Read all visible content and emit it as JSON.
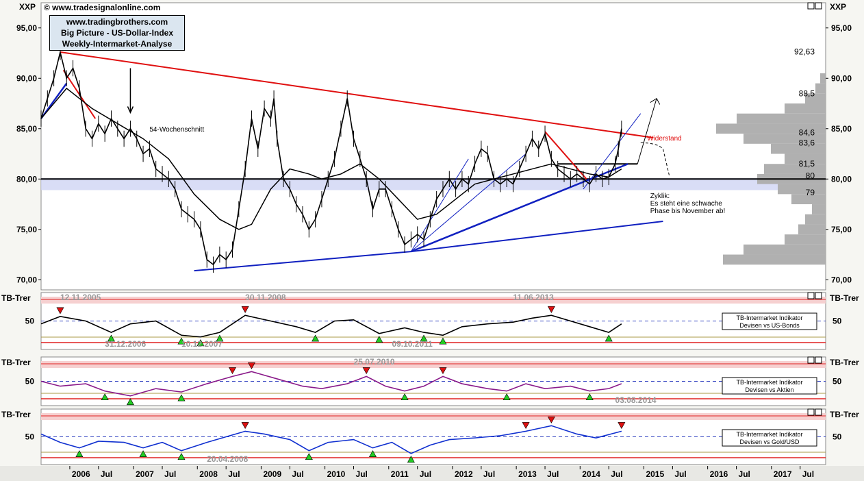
{
  "copyright": "© www.tradesignalonline.com",
  "symbol": "XXP",
  "header_box": [
    "www.tradingbrothers.com",
    "Big Picture - US-Dollar-Index",
    "Weekly-Intermarket-Analyse"
  ],
  "annotations": {
    "ma_label": "54-Wochenschnitt",
    "resistance_label": "Widerstand",
    "cycle_lines": [
      "Zyklik:",
      "Es steht eine schwache",
      "Phase bis November ab!"
    ],
    "levels": [
      "92,63",
      "88,5",
      "84,6",
      "83,6",
      "81,5",
      "80",
      "79"
    ]
  },
  "panel_labels": [
    "TB-Trer",
    "TB-Trer",
    "TB-Trer"
  ],
  "indicator_boxes": [
    [
      "TB-Intermarket Indikator",
      "Devisen vs US-Bonds"
    ],
    [
      "TB-Intermarket Indikator",
      "Devisen vs Aktien"
    ],
    [
      "TB-Intermarket Indikator",
      "Devisen vs Gold/USD"
    ]
  ],
  "indicator_dates": [
    [
      "12.11.2005",
      "30.11.2008",
      "11.06.2013",
      "31.12.2006",
      "10.12.2007",
      "09.10.2011"
    ],
    [
      "25.07.2010",
      "03.08.2014"
    ],
    [
      "20.04.2008"
    ]
  ],
  "x_axis": [
    "2006",
    "Jul",
    "2007",
    "Jul",
    "2008",
    "Jul",
    "2009",
    "Jul",
    "2010",
    "Jul",
    "2011",
    "Jul",
    "2012",
    "Jul",
    "2013",
    "Jul",
    "2014",
    "Jul",
    "2015",
    "Jul",
    "2016",
    "Jul",
    "2017",
    "Jul"
  ],
  "colors": {
    "price": "#000000",
    "resistance": "#e01010",
    "support": "#1020c0",
    "bonds": "#000000",
    "aktien": "#8a1a8a",
    "gold": "#1030d0",
    "up": "#22cc22",
    "down": "#dd1111"
  },
  "chart_data": [
    {
      "type": "line",
      "title": "Big Picture - US-Dollar-Index",
      "ylabel": "XXP",
      "ylim": [
        69.0,
        97.5
      ],
      "yticks": [
        "95,00",
        "90,00",
        "85,00",
        "80,00",
        "75,00",
        "70,00"
      ],
      "yticks_values": [
        95,
        90,
        85,
        80,
        75,
        70
      ],
      "x_range": [
        "2005-08",
        "2017-12"
      ],
      "series": [
        {
          "values": [
            [
              2005.6,
              86
            ],
            [
              2005.7,
              88
            ],
            [
              2005.8,
              90
            ],
            [
              2005.9,
              92.6
            ],
            [
              2006.0,
              90
            ],
            [
              2006.1,
              91
            ],
            [
              2006.2,
              89
            ],
            [
              2006.3,
              85
            ],
            [
              2006.4,
              84
            ],
            [
              2006.5,
              85.5
            ],
            [
              2006.6,
              84.5
            ],
            [
              2006.7,
              86
            ],
            [
              2006.8,
              85
            ],
            [
              2006.9,
              84
            ],
            [
              2007.0,
              85
            ],
            [
              2007.1,
              84
            ],
            [
              2007.2,
              82.5
            ],
            [
              2007.3,
              83
            ],
            [
              2007.4,
              81
            ],
            [
              2007.5,
              80.5
            ],
            [
              2007.6,
              80
            ],
            [
              2007.7,
              79
            ],
            [
              2007.8,
              77
            ],
            [
              2007.9,
              76.5
            ],
            [
              2008.0,
              76
            ],
            [
              2008.1,
              75
            ],
            [
              2008.2,
              72
            ],
            [
              2008.3,
              71.5
            ],
            [
              2008.4,
              72.5
            ],
            [
              2008.5,
              72
            ],
            [
              2008.6,
              73
            ],
            [
              2008.7,
              77
            ],
            [
              2008.8,
              81
            ],
            [
              2008.9,
              86
            ],
            [
              2009.0,
              83
            ],
            [
              2009.1,
              87
            ],
            [
              2009.2,
              86
            ],
            [
              2009.25,
              88
            ],
            [
              2009.3,
              84
            ],
            [
              2009.4,
              80
            ],
            [
              2009.5,
              79
            ],
            [
              2009.6,
              77.5
            ],
            [
              2009.7,
              76.5
            ],
            [
              2009.8,
              75
            ],
            [
              2009.9,
              76
            ],
            [
              2010.0,
              78
            ],
            [
              2010.1,
              80
            ],
            [
              2010.2,
              82
            ],
            [
              2010.3,
              85
            ],
            [
              2010.4,
              88
            ],
            [
              2010.5,
              84
            ],
            [
              2010.6,
              82
            ],
            [
              2010.7,
              80
            ],
            [
              2010.8,
              77
            ],
            [
              2010.9,
              79
            ],
            [
              2011.0,
              79
            ],
            [
              2011.1,
              77
            ],
            [
              2011.2,
              75
            ],
            [
              2011.3,
              73.5
            ],
            [
              2011.4,
              74
            ],
            [
              2011.5,
              74.5
            ],
            [
              2011.6,
              74
            ],
            [
              2011.7,
              76
            ],
            [
              2011.8,
              78
            ],
            [
              2011.9,
              79
            ],
            [
              2012.0,
              80
            ],
            [
              2012.1,
              79
            ],
            [
              2012.2,
              80
            ],
            [
              2012.3,
              79.5
            ],
            [
              2012.4,
              81.5
            ],
            [
              2012.5,
              83
            ],
            [
              2012.6,
              82.5
            ],
            [
              2012.7,
              80
            ],
            [
              2012.8,
              79.5
            ],
            [
              2012.9,
              80
            ],
            [
              2013.0,
              79.5
            ],
            [
              2013.1,
              81
            ],
            [
              2013.2,
              82.5
            ],
            [
              2013.3,
              84
            ],
            [
              2013.4,
              83
            ],
            [
              2013.5,
              84.5
            ],
            [
              2013.6,
              82
            ],
            [
              2013.7,
              81
            ],
            [
              2013.8,
              80.5
            ],
            [
              2013.9,
              80
            ],
            [
              2014.0,
              80.5
            ],
            [
              2014.1,
              80
            ],
            [
              2014.2,
              79.5
            ],
            [
              2014.3,
              80.5
            ],
            [
              2014.4,
              80
            ],
            [
              2014.5,
              80.2
            ],
            [
              2014.6,
              81.5
            ],
            [
              2014.65,
              83
            ],
            [
              2014.7,
              85
            ]
          ]
        },
        {
          "name": "54-Wochenschnitt",
          "values": [
            [
              2005.6,
              86
            ],
            [
              2006.0,
              89
            ],
            [
              2006.4,
              87
            ],
            [
              2006.8,
              85.5
            ],
            [
              2007.2,
              84
            ],
            [
              2007.6,
              82
            ],
            [
              2008.0,
              78.5
            ],
            [
              2008.4,
              76
            ],
            [
              2008.7,
              75
            ],
            [
              2008.9,
              75.5
            ],
            [
              2009.2,
              79
            ],
            [
              2009.5,
              81
            ],
            [
              2009.8,
              80.5
            ],
            [
              2010.0,
              80
            ],
            [
              2010.3,
              80.5
            ],
            [
              2010.6,
              81.5
            ],
            [
              2010.9,
              80
            ],
            [
              2011.2,
              78
            ],
            [
              2011.5,
              76
            ],
            [
              2011.8,
              76.5
            ],
            [
              2012.1,
              78
            ],
            [
              2012.4,
              79.5
            ],
            [
              2012.7,
              80
            ],
            [
              2013.0,
              80.5
            ],
            [
              2013.3,
              81
            ],
            [
              2013.6,
              81.5
            ],
            [
              2013.9,
              81
            ],
            [
              2014.2,
              80.5
            ],
            [
              2014.5,
              80.2
            ],
            [
              2014.7,
              81
            ]
          ]
        }
      ]
    },
    {
      "type": "line",
      "title": "TB-Intermarket Indikator Devisen vs US-Bonds",
      "ylim": [
        0,
        100
      ],
      "yticks": [
        "50"
      ],
      "values": [
        [
          2005.6,
          45
        ],
        [
          2005.9,
          58
        ],
        [
          2006.3,
          50
        ],
        [
          2006.7,
          30
        ],
        [
          2007.0,
          45
        ],
        [
          2007.4,
          50
        ],
        [
          2007.8,
          25
        ],
        [
          2008.1,
          22
        ],
        [
          2008.4,
          30
        ],
        [
          2008.8,
          60
        ],
        [
          2009.2,
          50
        ],
        [
          2009.6,
          40
        ],
        [
          2009.9,
          30
        ],
        [
          2010.2,
          50
        ],
        [
          2010.5,
          52
        ],
        [
          2010.9,
          28
        ],
        [
          2011.3,
          38
        ],
        [
          2011.6,
          30
        ],
        [
          2011.9,
          25
        ],
        [
          2012.2,
          40
        ],
        [
          2012.6,
          45
        ],
        [
          2013.0,
          48
        ],
        [
          2013.3,
          55
        ],
        [
          2013.6,
          60
        ],
        [
          2013.9,
          50
        ],
        [
          2014.2,
          40
        ],
        [
          2014.5,
          30
        ],
        [
          2014.7,
          45
        ]
      ]
    },
    {
      "type": "line",
      "title": "TB-Intermarket Indikator Devisen vs Aktien",
      "ylim": [
        0,
        100
      ],
      "yticks": [
        "50"
      ],
      "values": [
        [
          2005.6,
          50
        ],
        [
          2005.9,
          40
        ],
        [
          2006.3,
          45
        ],
        [
          2006.6,
          30
        ],
        [
          2007.0,
          20
        ],
        [
          2007.4,
          35
        ],
        [
          2007.8,
          28
        ],
        [
          2008.2,
          45
        ],
        [
          2008.6,
          60
        ],
        [
          2008.9,
          70
        ],
        [
          2009.3,
          55
        ],
        [
          2009.7,
          40
        ],
        [
          2010.0,
          35
        ],
        [
          2010.4,
          45
        ],
        [
          2010.7,
          60
        ],
        [
          2011.0,
          40
        ],
        [
          2011.3,
          30
        ],
        [
          2011.6,
          40
        ],
        [
          2011.9,
          60
        ],
        [
          2012.2,
          45
        ],
        [
          2012.6,
          35
        ],
        [
          2012.9,
          30
        ],
        [
          2013.2,
          45
        ],
        [
          2013.5,
          35
        ],
        [
          2013.9,
          40
        ],
        [
          2014.2,
          30
        ],
        [
          2014.5,
          35
        ],
        [
          2014.7,
          45
        ]
      ]
    },
    {
      "type": "line",
      "title": "TB-Intermarket Indikator Devisen vs Gold/USD",
      "ylim": [
        0,
        100
      ],
      "yticks": [
        "50"
      ],
      "values": [
        [
          2005.6,
          55
        ],
        [
          2005.9,
          40
        ],
        [
          2006.2,
          30
        ],
        [
          2006.5,
          42
        ],
        [
          2006.9,
          40
        ],
        [
          2007.2,
          30
        ],
        [
          2007.5,
          40
        ],
        [
          2007.8,
          25
        ],
        [
          2008.2,
          40
        ],
        [
          2008.5,
          50
        ],
        [
          2008.8,
          60
        ],
        [
          2009.1,
          55
        ],
        [
          2009.5,
          45
        ],
        [
          2009.8,
          25
        ],
        [
          2010.1,
          40
        ],
        [
          2010.5,
          45
        ],
        [
          2010.8,
          30
        ],
        [
          2011.1,
          40
        ],
        [
          2011.4,
          20
        ],
        [
          2011.7,
          35
        ],
        [
          2012.0,
          45
        ],
        [
          2012.4,
          48
        ],
        [
          2012.8,
          52
        ],
        [
          2013.2,
          60
        ],
        [
          2013.6,
          70
        ],
        [
          2014.0,
          55
        ],
        [
          2014.3,
          48
        ],
        [
          2014.7,
          60
        ]
      ]
    }
  ]
}
